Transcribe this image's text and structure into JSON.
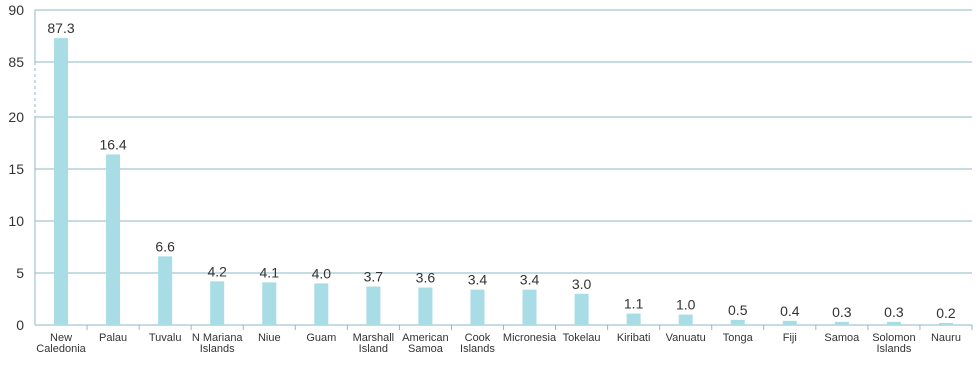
{
  "chart_data": {
    "type": "bar",
    "categories": [
      "New Caledonia",
      "Palau",
      "Tuvalu",
      "N Mariana Islands",
      "Niue",
      "Guam",
      "Marshall Island",
      "American Samoa",
      "Cook Islands",
      "Micronesia",
      "Tokelau",
      "Kiribati",
      "Vanuatu",
      "Tonga",
      "Fiji",
      "Samoa",
      "Solomon Islands",
      "Nauru"
    ],
    "category_lines": [
      [
        "New",
        "Caledonia"
      ],
      [
        "Palau"
      ],
      [
        "Tuvalu"
      ],
      [
        "N Mariana",
        "Islands"
      ],
      [
        "Niue"
      ],
      [
        "Guam"
      ],
      [
        "Marshall",
        "Island"
      ],
      [
        "American",
        "Samoa"
      ],
      [
        "Cook",
        "Islands"
      ],
      [
        "Micronesia"
      ],
      [
        "Tokelau"
      ],
      [
        "Kiribati"
      ],
      [
        "Vanuatu"
      ],
      [
        "Tonga"
      ],
      [
        "Fiji"
      ],
      [
        "Samoa"
      ],
      [
        "Solomon",
        "Islands"
      ],
      [
        "Nauru"
      ]
    ],
    "values": [
      87.3,
      16.4,
      6.6,
      4.2,
      4.1,
      4.0,
      3.7,
      3.6,
      3.4,
      3.4,
      3.0,
      1.1,
      1.0,
      0.5,
      0.4,
      0.3,
      0.3,
      0.2
    ],
    "data_labels": [
      "87.3",
      "16.4",
      "6.6",
      "4.2",
      "4.1",
      "4.0",
      "3.7",
      "3.6",
      "3.4",
      "3.4",
      "3.0",
      "1.1",
      "1.0",
      "0.5",
      "0.4",
      "0.3",
      "0.3",
      "0.2"
    ],
    "y_axis": {
      "broken": true,
      "lower_range": [
        0,
        20
      ],
      "upper_range": [
        85,
        90
      ],
      "ticks": [
        0,
        5,
        10,
        15,
        20,
        85,
        90
      ],
      "tick_labels": [
        "0",
        "5",
        "10",
        "15",
        "20",
        "85",
        "90"
      ]
    },
    "grid": true,
    "bar_color": "#a8dde6",
    "grid_color": "#8fb8c6",
    "title": "",
    "xlabel": "",
    "ylabel": ""
  }
}
